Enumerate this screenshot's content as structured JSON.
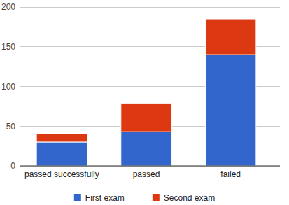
{
  "chart_data": {
    "type": "bar",
    "stacked": true,
    "grid": true,
    "legend": "bottom",
    "categories": [
      "passed successfully",
      "passed",
      "failed"
    ],
    "series": [
      {
        "name": "First exam",
        "color": "#3366cc",
        "values": [
          30,
          43,
          140
        ]
      },
      {
        "name": "Second exam",
        "color": "#dc3912",
        "values": [
          11,
          36,
          45
        ]
      }
    ],
    "ylim": [
      0,
      200
    ],
    "yticks": [
      0,
      50,
      100,
      150,
      200
    ]
  }
}
